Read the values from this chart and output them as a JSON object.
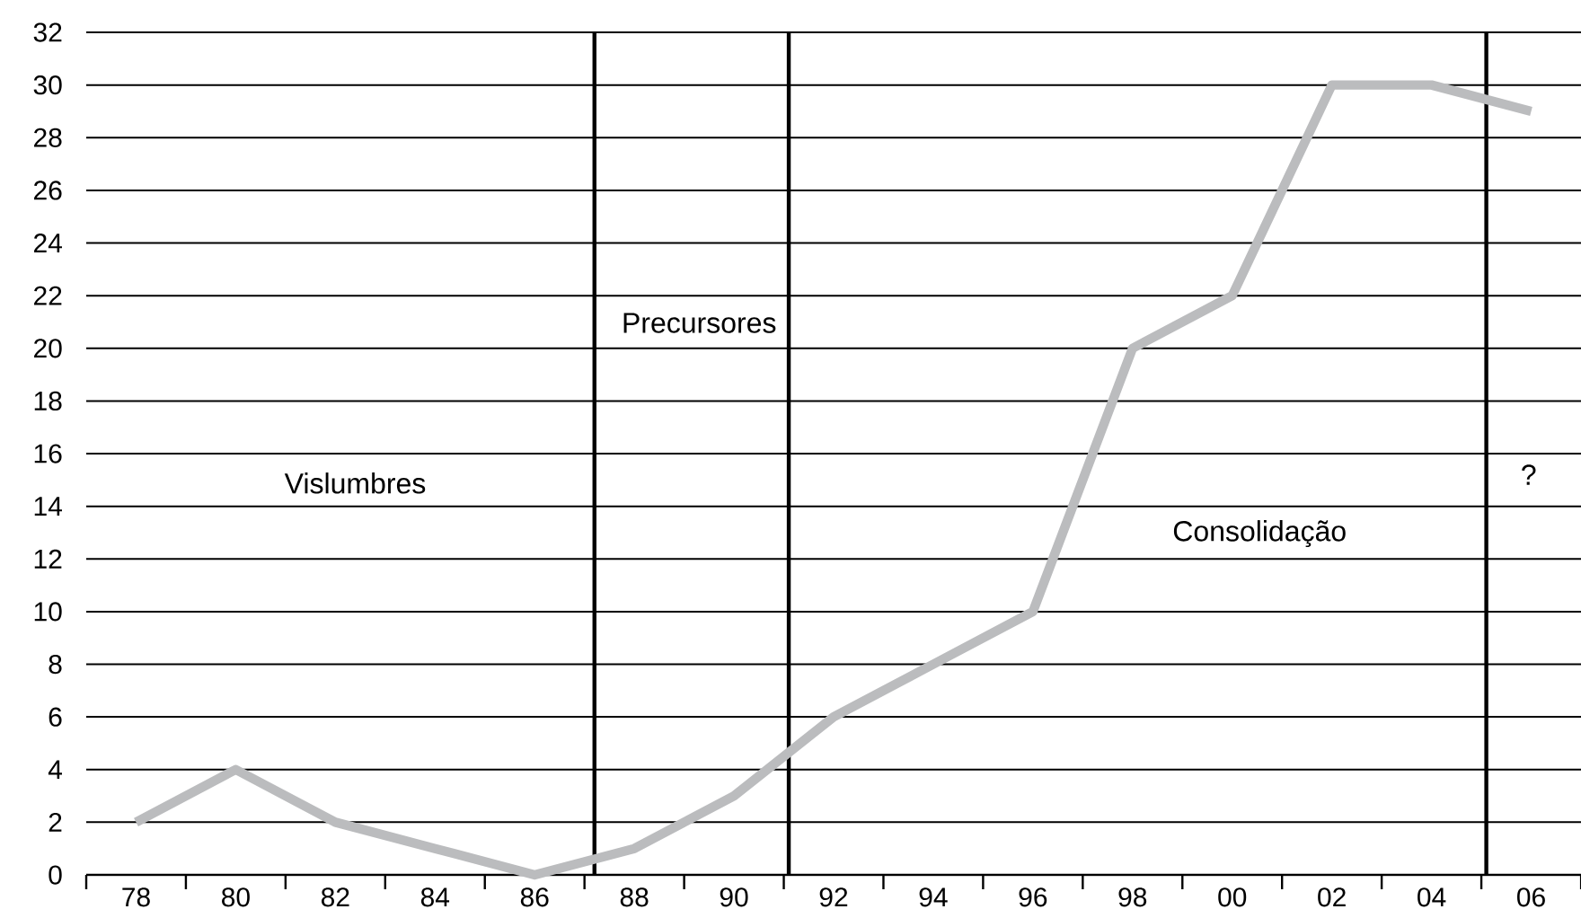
{
  "chart_data": {
    "type": "line",
    "x": [
      1978,
      1980,
      1982,
      1984,
      1986,
      1988,
      1990,
      1992,
      1994,
      1996,
      1998,
      2000,
      2002,
      2004,
      2006
    ],
    "values": [
      2,
      4,
      2,
      1,
      0,
      1,
      3,
      6,
      8,
      10,
      20,
      22,
      30,
      30,
      29
    ],
    "color": "#bbbcbe",
    "marker": "none",
    "line_style": "solid",
    "grid": "y",
    "xlim": [
      1977,
      2007
    ],
    "ylim": [
      0,
      32
    ],
    "yticks": [
      0,
      2,
      4,
      6,
      8,
      10,
      12,
      14,
      16,
      18,
      20,
      22,
      24,
      26,
      28,
      30,
      32
    ],
    "xticks": [
      {
        "value": 1977,
        "label": null
      },
      {
        "value": 1978,
        "label": "78"
      },
      {
        "value": 1979,
        "label": null
      },
      {
        "value": 1980,
        "label": "80"
      },
      {
        "value": 1981,
        "label": null
      },
      {
        "value": 1982,
        "label": "82"
      },
      {
        "value": 1983,
        "label": null
      },
      {
        "value": 1984,
        "label": "84"
      },
      {
        "value": 1985,
        "label": null
      },
      {
        "value": 1986,
        "label": "86"
      },
      {
        "value": 1987,
        "label": null
      },
      {
        "value": 1988,
        "label": "88"
      },
      {
        "value": 1989,
        "label": null
      },
      {
        "value": 1990,
        "label": "90"
      },
      {
        "value": 1991,
        "label": null
      },
      {
        "value": 1992,
        "label": "92"
      },
      {
        "value": 1993,
        "label": null
      },
      {
        "value": 1994,
        "label": "94"
      },
      {
        "value": 1995,
        "label": null
      },
      {
        "value": 1996,
        "label": "96"
      },
      {
        "value": 1997,
        "label": null
      },
      {
        "value": 1998,
        "label": "98"
      },
      {
        "value": 1999,
        "label": null
      },
      {
        "value": 2000,
        "label": "00"
      },
      {
        "value": 2001,
        "label": null
      },
      {
        "value": 2002,
        "label": "02"
      },
      {
        "value": 2003,
        "label": null
      },
      {
        "value": 2004,
        "label": "04"
      },
      {
        "value": 2005,
        "label": null
      },
      {
        "value": 2006,
        "label": "06"
      },
      {
        "value": 2007,
        "label": null
      }
    ],
    "ref_lines": [
      {
        "axis": "x",
        "value": 1987.2,
        "color": "#000000"
      },
      {
        "axis": "x",
        "value": 1991.1,
        "color": "#000000"
      },
      {
        "axis": "x",
        "value": 2005.1,
        "color": "#000000"
      }
    ],
    "annotations": [
      "Vislumbres",
      "Precursores",
      "Consolidação",
      "?"
    ]
  }
}
